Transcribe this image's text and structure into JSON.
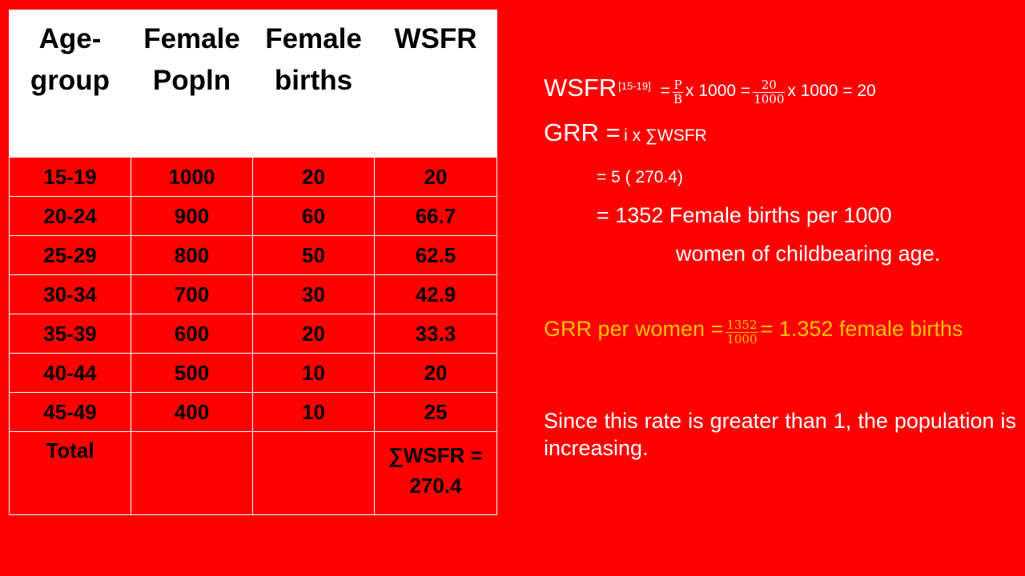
{
  "table": {
    "headers": [
      {
        "line1": "Age-",
        "line2": "group"
      },
      {
        "line1": "Female",
        "line2": "Popln"
      },
      {
        "line1": "Female",
        "line2": "births"
      },
      {
        "line1": "WSFR",
        "line2": ""
      }
    ],
    "rows": [
      {
        "age": "15-19",
        "popln": "1000",
        "births": "20",
        "wsfr": "20"
      },
      {
        "age": "20-24",
        "popln": "900",
        "births": "60",
        "wsfr": "66.7"
      },
      {
        "age": "25-29",
        "popln": "800",
        "births": "50",
        "wsfr": "62.5"
      },
      {
        "age": "30-34",
        "popln": "700",
        "births": "30",
        "wsfr": "42.9"
      },
      {
        "age": "35-39",
        "popln": "600",
        "births": "20",
        "wsfr": "33.3"
      },
      {
        "age": "40-44",
        "popln": "500",
        "births": "10",
        "wsfr": "20"
      },
      {
        "age": "45-49",
        "popln": "400",
        "births": "10",
        "wsfr": "25"
      }
    ],
    "total": {
      "label": "Total",
      "sum_line1": "∑WSFR =",
      "sum_line2": "270.4"
    }
  },
  "formulas": {
    "wsfr": {
      "label": "WSFR",
      "subscript": "[15-19]",
      "eq1": "=",
      "frac1_num": "P",
      "frac1_den": "B",
      "mid": "x 1000 =",
      "frac2_num": "20",
      "frac2_den": "1000",
      "tail": "x 1000 = 20"
    },
    "grr": {
      "label": "GRR =",
      "rest": "i x ∑WSFR"
    },
    "step1": "= 5 ( 270.4)",
    "step2": "= 1352 Female births per 1000",
    "step3": "women of childbearing age.",
    "per_women": {
      "lead": "GRR per women =",
      "frac_num": "1352",
      "frac_den": "1000",
      "tail": "= 1.352 female births"
    },
    "conclusion": "Since this rate is greater than 1, the population is increasing."
  },
  "colors": {
    "background": "#ff0000",
    "text": "#ffffff",
    "highlight": "#ffc000"
  }
}
